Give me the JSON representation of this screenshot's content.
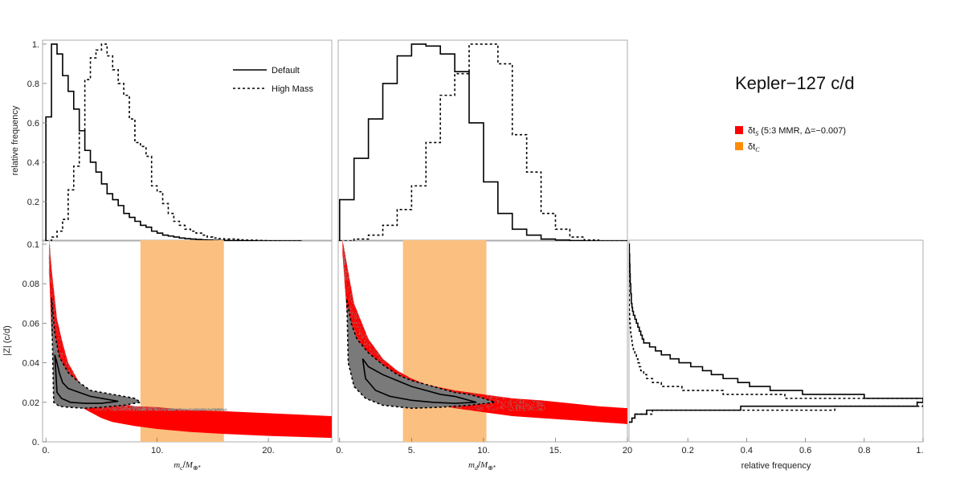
{
  "figure": {
    "title": "Kepler−127 c/d",
    "legend_lines": [
      {
        "label": "Default",
        "style": "solid"
      },
      {
        "label": "High Mass",
        "style": "dotted"
      }
    ],
    "legend_regions": [
      {
        "label": "δt",
        "sub": "S",
        "suffix": " (5:3 MMR, Δ=−0.007)",
        "color": "#ff0000"
      },
      {
        "label": "δt",
        "sub": "C",
        "suffix": "",
        "color": "#ff8c00"
      }
    ]
  },
  "chart_data": [
    {
      "id": "hist_mc",
      "type": "histogram",
      "title": "",
      "xlabel": "",
      "ylabel": "relative frequency",
      "xlim": [
        -0.3,
        25.7
      ],
      "ylim": [
        0,
        1.02
      ],
      "yticks": [
        0.2,
        0.4,
        0.6,
        0.8,
        1
      ],
      "ytick_labels": [
        "0.2",
        "0.4",
        "0.6",
        "0.8",
        "1."
      ],
      "bin_edges": [
        0,
        0.5,
        1,
        1.5,
        2,
        2.5,
        3,
        3.5,
        4,
        4.5,
        5,
        5.5,
        6,
        6.5,
        7,
        7.5,
        8,
        8.5,
        9,
        9.5,
        10,
        10.5,
        11,
        11.5,
        12,
        12.5,
        13,
        13.5,
        14,
        14.5,
        15,
        15.5,
        16,
        16.5,
        17,
        17.5,
        18,
        18.5,
        19,
        19.5,
        20,
        20.5,
        21,
        21.5,
        22,
        22.5,
        23
      ],
      "series": [
        {
          "name": "Default",
          "style": "solid",
          "values": [
            0.63,
            1.0,
            0.95,
            0.84,
            0.76,
            0.67,
            0.56,
            0.46,
            0.4,
            0.35,
            0.29,
            0.24,
            0.21,
            0.18,
            0.14,
            0.12,
            0.1,
            0.08,
            0.07,
            0.05,
            0.04,
            0.03,
            0.025,
            0.02,
            0.015,
            0.012,
            0.01,
            0.008,
            0.006,
            0.005,
            0.004,
            0.003,
            0.003,
            0.002,
            0.002,
            0.001,
            0.001,
            0.001,
            0,
            0,
            0,
            0,
            0,
            0,
            0,
            0
          ]
        },
        {
          "name": "High Mass",
          "style": "dotted",
          "values": [
            0,
            0.02,
            0.05,
            0.11,
            0.26,
            0.38,
            0.56,
            0.82,
            0.93,
            0.97,
            1.0,
            0.94,
            0.87,
            0.8,
            0.74,
            0.62,
            0.5,
            0.48,
            0.43,
            0.28,
            0.25,
            0.19,
            0.14,
            0.1,
            0.08,
            0.06,
            0.05,
            0.04,
            0.03,
            0.02,
            0.015,
            0.012,
            0.01,
            0.01,
            0.008,
            0.006,
            0.005,
            0.004,
            0.003,
            0.002,
            0.001,
            0.001,
            0,
            0,
            0,
            0
          ]
        }
      ]
    },
    {
      "id": "hist_md",
      "type": "histogram",
      "title": "",
      "xlabel": "",
      "ylabel": "",
      "xlim": [
        -0.1,
        20.0
      ],
      "ylim": [
        0,
        1.02
      ],
      "bin_edges": [
        0,
        1,
        2,
        3,
        4,
        5,
        6,
        7,
        8,
        9,
        10,
        11,
        12,
        13,
        14,
        15,
        16,
        17,
        18,
        19,
        20
      ],
      "series": [
        {
          "name": "Default",
          "style": "solid",
          "values": [
            0.21,
            0.42,
            0.62,
            0.8,
            0.94,
            1.0,
            0.99,
            0.95,
            0.86,
            0.6,
            0.3,
            0.14,
            0.06,
            0.03,
            0.01,
            0.005,
            0.002,
            0,
            0,
            0
          ]
        },
        {
          "name": "High Mass",
          "style": "dotted",
          "values": [
            0,
            0.01,
            0.03,
            0.08,
            0.16,
            0.28,
            0.5,
            0.74,
            0.85,
            1.0,
            1.0,
            0.9,
            0.54,
            0.35,
            0.14,
            0.06,
            0.02,
            0.005,
            0,
            0
          ]
        }
      ]
    },
    {
      "id": "scatter_mc",
      "type": "scatter",
      "title": "",
      "xlabel": "m_c/M⊕*",
      "ylabel": "|Z| (c/d)",
      "xlim": [
        -0.3,
        25.7
      ],
      "ylim": [
        0,
        0.102
      ],
      "xticks": [
        0,
        10,
        20
      ],
      "xtick_labels": [
        "0.",
        "10.",
        "20."
      ],
      "yticks": [
        0,
        0.02,
        0.04,
        0.06,
        0.08,
        0.1
      ],
      "ytick_labels": [
        "0.",
        "0.02",
        "0.04",
        "0.06",
        "0.08",
        "0.1"
      ],
      "bands": [
        {
          "name": "δtC",
          "x_range": [
            8.5,
            16.0
          ],
          "y_range": [
            0,
            0.102
          ],
          "color": "#fbbf7f"
        },
        {
          "name": "δtS (5:3 MMR)",
          "x_range": [
            0.3,
            25.7
          ],
          "lower_curve": {
            "x": [
              0.3,
              0.5,
              1,
              1.5,
              2,
              3,
              4,
              5,
              6,
              8,
              10,
              13,
              16,
              20,
              25.7
            ],
            "y": [
              0.085,
              0.055,
              0.035,
              0.03,
              0.024,
              0.018,
              0.015,
              0.012,
              0.01,
              0.008,
              0.0065,
              0.005,
              0.004,
              0.003,
              0.002
            ]
          },
          "upper_curve": {
            "x": [
              0.3,
              0.5,
              1,
              1.5,
              2,
              3,
              4,
              5,
              6,
              8,
              10,
              13,
              16,
              20,
              25.7
            ],
            "y": [
              0.102,
              0.088,
              0.062,
              0.05,
              0.04,
              0.03,
              0.025,
              0.022,
              0.02,
              0.018,
              0.0175,
              0.016,
              0.0155,
              0.0145,
              0.013
            ]
          },
          "color": "#ff0000"
        }
      ],
      "contours": [
        {
          "level": "inner",
          "style": "solid",
          "x": [
            0.8,
            1.0,
            1.2,
            1.5,
            2.0,
            3.0,
            4.0,
            5.0,
            6.0,
            6.5,
            5.0,
            3.5,
            2.2,
            1.4,
            1.0,
            0.8
          ],
          "y": [
            0.044,
            0.04,
            0.035,
            0.03,
            0.027,
            0.025,
            0.023,
            0.022,
            0.021,
            0.0205,
            0.0195,
            0.0195,
            0.02,
            0.022,
            0.025,
            0.044
          ]
        },
        {
          "level": "outer",
          "style": "dotted",
          "x": [
            0.5,
            0.8,
            1.2,
            2.0,
            3.0,
            4.0,
            5.0,
            6.0,
            7.0,
            8.0,
            8.5,
            7.0,
            5.0,
            3.5,
            2.0,
            1.2,
            0.7,
            0.5
          ],
          "y": [
            0.073,
            0.055,
            0.043,
            0.035,
            0.03,
            0.026,
            0.025,
            0.024,
            0.023,
            0.022,
            0.02,
            0.0185,
            0.0175,
            0.017,
            0.0175,
            0.018,
            0.02,
            0.073
          ]
        }
      ]
    },
    {
      "id": "scatter_md",
      "type": "scatter",
      "title": "",
      "xlabel": "m_d/M⊕*",
      "ylabel": "",
      "xlim": [
        -0.1,
        20.0
      ],
      "ylim": [
        0,
        0.102
      ],
      "xticks": [
        0,
        5,
        10,
        15,
        20
      ],
      "xtick_labels": [
        "0.",
        "5.",
        "10.",
        "15.",
        "20"
      ],
      "bands": [
        {
          "name": "δtC",
          "x_range": [
            4.4,
            10.2
          ],
          "y_range": [
            0,
            0.102
          ],
          "color": "#fbbf7f"
        },
        {
          "name": "δtS (5:3 MMR)",
          "x_range": [
            0.2,
            20
          ],
          "lower_curve": {
            "x": [
              0.2,
              0.5,
              1,
              2,
              3,
              4,
              5,
              6,
              8,
              10,
              12,
              14,
              16,
              18,
              20
            ],
            "y": [
              0.095,
              0.065,
              0.05,
              0.036,
              0.029,
              0.025,
              0.022,
              0.02,
              0.017,
              0.015,
              0.013,
              0.012,
              0.011,
              0.01,
              0.009
            ]
          },
          "upper_curve": {
            "x": [
              0.2,
              0.5,
              1,
              2,
              3,
              4,
              5,
              6,
              8,
              10,
              12,
              14,
              16,
              18,
              20
            ],
            "y": [
              0.102,
              0.09,
              0.07,
              0.052,
              0.042,
              0.036,
              0.032,
              0.029,
              0.026,
              0.024,
              0.022,
              0.021,
              0.0195,
              0.018,
              0.017
            ]
          },
          "color": "#ff0000"
        }
      ],
      "contours": [
        {
          "level": "inner",
          "style": "solid",
          "x": [
            1.6,
            2.0,
            3.0,
            4.0,
            5.0,
            6.0,
            7.0,
            8.0,
            9.0,
            9.5,
            8.0,
            6.5,
            5.0,
            3.5,
            2.5,
            1.8,
            1.6
          ],
          "y": [
            0.042,
            0.038,
            0.034,
            0.031,
            0.028,
            0.026,
            0.024,
            0.023,
            0.021,
            0.02,
            0.0195,
            0.02,
            0.021,
            0.023,
            0.026,
            0.032,
            0.042
          ]
        },
        {
          "level": "outer",
          "style": "dotted",
          "x": [
            0.5,
            0.8,
            1.2,
            2.0,
            3.0,
            4.0,
            5.0,
            6.0,
            7.0,
            8.0,
            9.0,
            10.0,
            10.8,
            9.0,
            7.0,
            5.0,
            3.0,
            1.8,
            1.0,
            0.6,
            0.5
          ],
          "y": [
            0.072,
            0.06,
            0.052,
            0.045,
            0.039,
            0.034,
            0.031,
            0.029,
            0.027,
            0.025,
            0.024,
            0.022,
            0.02,
            0.0185,
            0.0175,
            0.017,
            0.0185,
            0.022,
            0.028,
            0.04,
            0.072
          ]
        }
      ]
    },
    {
      "id": "hist_z",
      "type": "histogram_horizontal",
      "title": "",
      "xlabel": "relative frequency",
      "ylabel": "",
      "xlim": [
        0,
        1.0
      ],
      "ylim": [
        0,
        0.102
      ],
      "xticks": [
        0.2,
        0.4,
        0.6,
        0.8,
        1.0
      ],
      "xtick_labels": [
        "0.2",
        "0.4",
        "0.6",
        "0.8",
        "1."
      ],
      "bin_edges": [
        0.01,
        0.012,
        0.014,
        0.016,
        0.018,
        0.02,
        0.022,
        0.024,
        0.026,
        0.028,
        0.03,
        0.032,
        0.034,
        0.036,
        0.038,
        0.04,
        0.042,
        0.044,
        0.046,
        0.048,
        0.05,
        0.052,
        0.054,
        0.056,
        0.058,
        0.06,
        0.062,
        0.064,
        0.066,
        0.068,
        0.07,
        0.075,
        0.08,
        0.085,
        0.09,
        0.095,
        0.1
      ],
      "series": [
        {
          "name": "Default",
          "style": "solid",
          "values": [
            0.01,
            0.02,
            0.06,
            0.38,
            0.98,
            1.0,
            0.8,
            0.59,
            0.48,
            0.41,
            0.37,
            0.32,
            0.28,
            0.25,
            0.21,
            0.17,
            0.14,
            0.11,
            0.09,
            0.07,
            0.05,
            0.045,
            0.04,
            0.035,
            0.03,
            0.025,
            0.02,
            0.015,
            0.012,
            0.01,
            0.008,
            0.006,
            0.004,
            0.003,
            0.002,
            0.001
          ]
        },
        {
          "name": "High Mass",
          "style": "dotted",
          "values": [
            0.01,
            0.02,
            0.08,
            0.7,
            1.0,
            0.98,
            0.53,
            0.32,
            0.18,
            0.11,
            0.08,
            0.06,
            0.05,
            0.04,
            0.035,
            0.03,
            0.025,
            0.02,
            0.015,
            0.012,
            0.01,
            0.008,
            0.006,
            0.005,
            0.004,
            0.003,
            0.002,
            0.002,
            0.001,
            0.001,
            0.001,
            0,
            0,
            0,
            0,
            0
          ]
        }
      ]
    }
  ]
}
